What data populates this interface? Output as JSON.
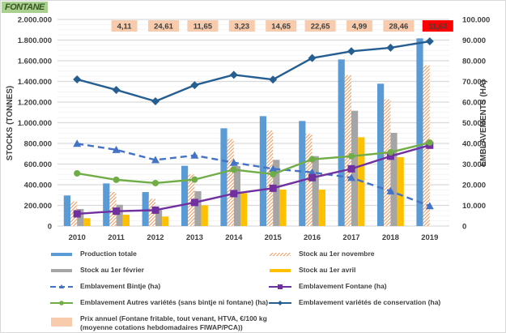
{
  "title_badge": "FONTANE",
  "chart_data": {
    "type": "bar",
    "title": "FONTANE",
    "categories": [
      "2010",
      "2011",
      "2012",
      "2013",
      "2014",
      "2015",
      "2016",
      "2017",
      "2018",
      "2019"
    ],
    "ylabel": "STOCKS (TONNES)",
    "y2label": "EMBLAVEMENTS (HA)",
    "ylim": [
      0,
      2000000
    ],
    "y2lim": [
      0,
      100000
    ],
    "yticks": [
      "0",
      "200.000",
      "400.000",
      "600.000",
      "800.000",
      "1.000.000",
      "1.200.000",
      "1.400.000",
      "1.600.000",
      "1.800.000",
      "2.000.000"
    ],
    "y2ticks": [
      "0",
      "10.000",
      "20.000",
      "30.000",
      "40.000",
      "50.000",
      "60.000",
      "70.000",
      "80.000",
      "90.000",
      "100.000"
    ],
    "grid": true,
    "bar_series": [
      {
        "name": "Production totale",
        "color": "#5b9bd5",
        "pattern": "solid",
        "values": [
          296000,
          413000,
          329000,
          583000,
          946000,
          1064000,
          1017000,
          1613000,
          1378000,
          1817000
        ]
      },
      {
        "name": "Stock au 1er novembre",
        "color": "#ed7d31",
        "pattern": "hatch",
        "values": [
          238000,
          329000,
          264000,
          500000,
          842000,
          925000,
          892000,
          1461000,
          1226000,
          1556000
        ]
      },
      {
        "name": "Stock au 1er février",
        "color": "#a5a5a5",
        "pattern": "solid",
        "values": [
          165000,
          206000,
          155000,
          337000,
          580000,
          641000,
          677000,
          1116000,
          902000,
          null
        ]
      },
      {
        "name": "Stock au 1er avril",
        "color": "#ffc000",
        "pattern": "solid",
        "values": [
          76000,
          110000,
          92000,
          201000,
          319000,
          353000,
          353000,
          860000,
          667000,
          null
        ]
      }
    ],
    "line_series": [
      {
        "name": "Emblavement Bintje (ha)",
        "color": "#4472c4",
        "marker": "triangle",
        "dashed": true,
        "axis": "right",
        "values": [
          39900,
          36900,
          32000,
          34200,
          30700,
          27700,
          26000,
          23400,
          16900,
          9700
        ]
      },
      {
        "name": "Emblavement Fontane (ha)",
        "color": "#7030a0",
        "marker": "square",
        "dashed": false,
        "axis": "right",
        "values": [
          5900,
          7200,
          7700,
          11400,
          15700,
          18300,
          23400,
          27700,
          33800,
          39100
        ]
      },
      {
        "name": "Emblavement Autres variétés (sans bintje ni fontane) (ha)",
        "color": "#70ad47",
        "marker": "circle",
        "dashed": false,
        "axis": "right",
        "values": [
          25500,
          22400,
          20800,
          22500,
          27300,
          25100,
          32300,
          33800,
          35700,
          40400
        ]
      },
      {
        "name": "Emblavement variétés de conservation (ha)",
        "color": "#255e91",
        "marker": "diamond",
        "dashed": false,
        "axis": "right",
        "values": [
          71000,
          65900,
          60400,
          68200,
          73200,
          70900,
          81300,
          84600,
          86300,
          89400
        ]
      }
    ],
    "price_series": {
      "name": "Prix annuel (Fontane fritable, tout venant, HTVA, €/100 kg (moyenne cotations hebdomadaires FIWAP/PCA))",
      "color": "#f8cbad",
      "highlight_color": "#ff0000",
      "labels": [
        "",
        "4,11",
        "24,61",
        "11,65",
        "3,23",
        "14,65",
        "22,65",
        "4,99",
        "28,46",
        "11,63"
      ],
      "highlighted": [
        false,
        false,
        false,
        false,
        false,
        false,
        false,
        false,
        false,
        true
      ]
    },
    "legend_position": "bottom"
  },
  "legend": [
    {
      "label": "Production totale"
    },
    {
      "label": "Stock au 1er novembre"
    },
    {
      "label": "Stock au 1er février"
    },
    {
      "label": "Stock au 1er avril"
    },
    {
      "label": "Emblavement Bintje (ha)"
    },
    {
      "label": "Emblavement Fontane (ha)"
    },
    {
      "label": "Emblavement Autres variétés (sans bintje ni fontane) (ha)"
    },
    {
      "label": "Emblavement variétés de conservation (ha)"
    },
    {
      "label": "Prix annuel (Fontane fritable, tout venant, HTVA, €/100 kg",
      "label2": "(moyenne cotations hebdomadaires FIWAP/PCA))"
    }
  ]
}
